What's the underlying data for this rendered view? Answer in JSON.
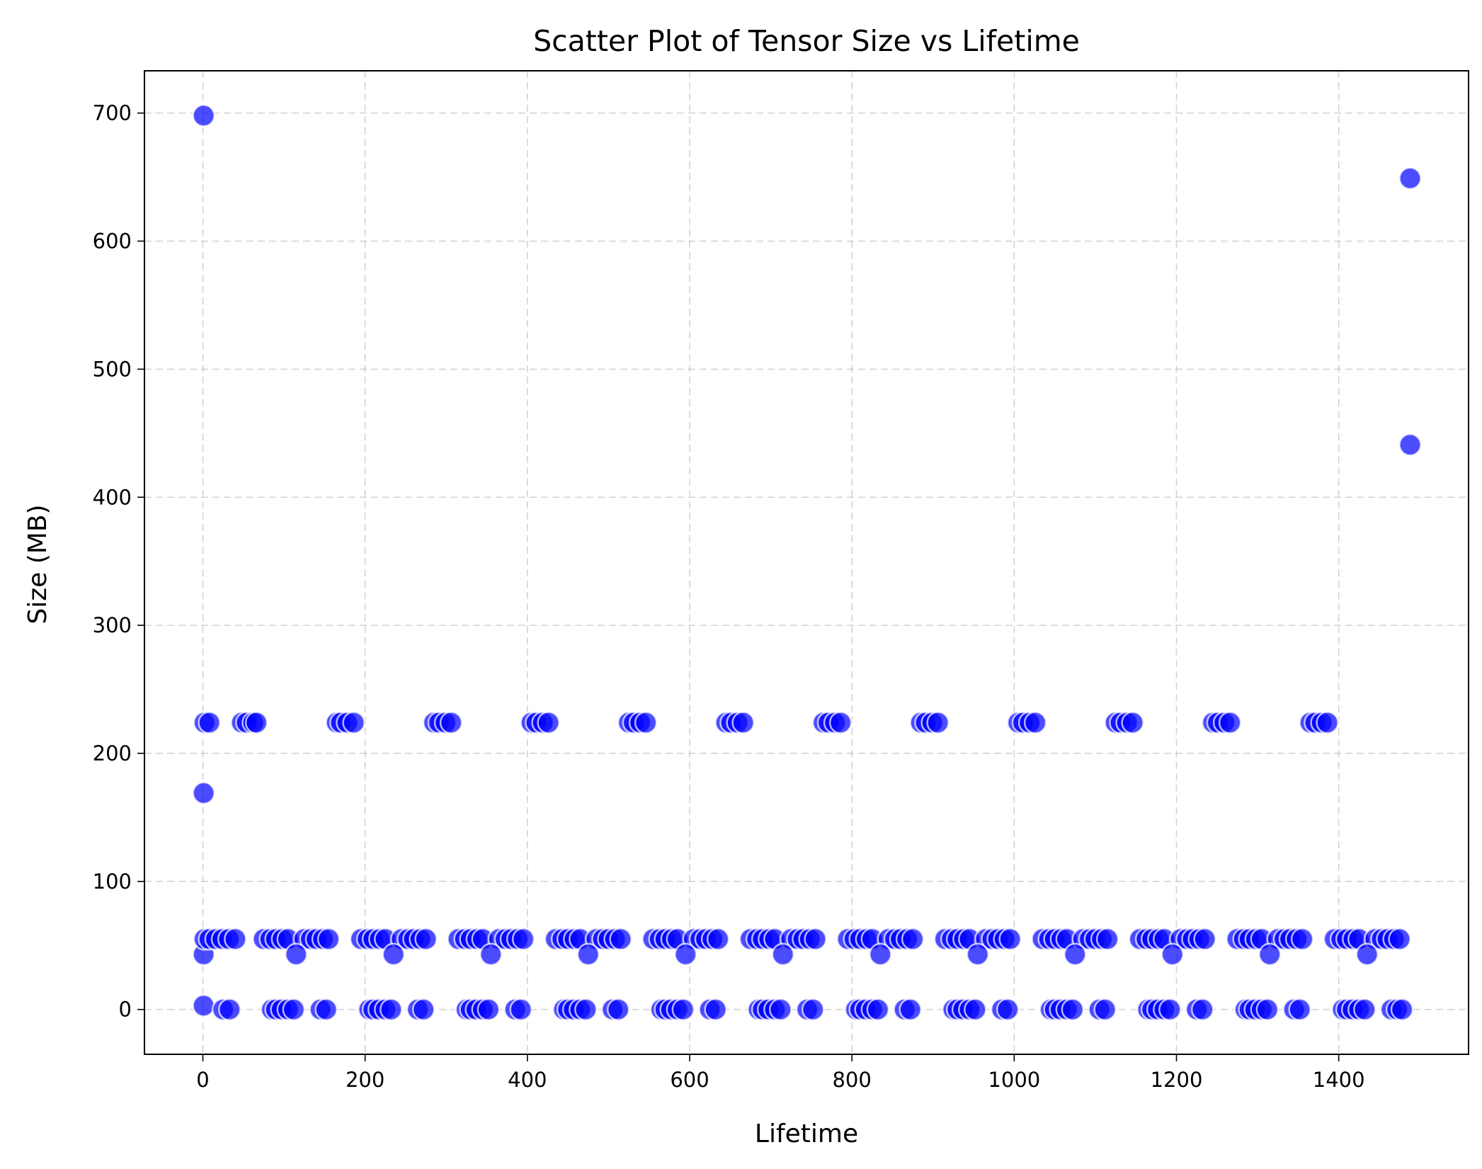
{
  "chart_data": {
    "type": "scatter",
    "title": "Scatter Plot of Tensor Size vs Lifetime",
    "xlabel": "Lifetime",
    "ylabel": "Size (MB)",
    "xlim": [
      -72,
      1560
    ],
    "ylim": [
      -35,
      733
    ],
    "xticks": [
      0,
      200,
      400,
      600,
      800,
      1000,
      1200,
      1400
    ],
    "yticks": [
      0,
      100,
      200,
      300,
      400,
      500,
      600,
      700
    ],
    "grid": true,
    "marker_color": "#0000ff",
    "edge_color": "#ffffff",
    "series": [
      {
        "points": [
          [
            1,
            698
          ],
          [
            1488,
            649
          ],
          [
            1488,
            441
          ],
          [
            1,
            169
          ],
          [
            1,
            43
          ],
          [
            1,
            3
          ],
          [
            2,
            55
          ],
          [
            2,
            224
          ],
          [
            8,
            224
          ],
          [
            48,
            224
          ],
          [
            54,
            224
          ],
          [
            62,
            224
          ],
          [
            66,
            224
          ],
          [
            165,
            224
          ],
          [
            170,
            224
          ],
          [
            178,
            224
          ],
          [
            186,
            224
          ],
          [
            285,
            224
          ],
          [
            291,
            224
          ],
          [
            299,
            224
          ],
          [
            306,
            224
          ],
          [
            405,
            224
          ],
          [
            411,
            224
          ],
          [
            419,
            224
          ],
          [
            426,
            224
          ],
          [
            525,
            224
          ],
          [
            531,
            224
          ],
          [
            539,
            224
          ],
          [
            546,
            224
          ],
          [
            645,
            224
          ],
          [
            651,
            224
          ],
          [
            659,
            224
          ],
          [
            666,
            224
          ],
          [
            765,
            224
          ],
          [
            771,
            224
          ],
          [
            779,
            224
          ],
          [
            786,
            224
          ],
          [
            885,
            224
          ],
          [
            891,
            224
          ],
          [
            899,
            224
          ],
          [
            906,
            224
          ],
          [
            1005,
            224
          ],
          [
            1011,
            224
          ],
          [
            1019,
            224
          ],
          [
            1026,
            224
          ],
          [
            1125,
            224
          ],
          [
            1131,
            224
          ],
          [
            1139,
            224
          ],
          [
            1146,
            224
          ],
          [
            1245,
            224
          ],
          [
            1251,
            224
          ],
          [
            1259,
            224
          ],
          [
            1266,
            224
          ],
          [
            1365,
            224
          ],
          [
            1371,
            224
          ],
          [
            1379,
            224
          ],
          [
            1386,
            224
          ],
          [
            8,
            55
          ],
          [
            16,
            55
          ],
          [
            24,
            55
          ],
          [
            32,
            55
          ],
          [
            40,
            55
          ],
          [
            75,
            55
          ],
          [
            83,
            55
          ],
          [
            90,
            55
          ],
          [
            98,
            55
          ],
          [
            105,
            55
          ],
          [
            125,
            55
          ],
          [
            133,
            55
          ],
          [
            140,
            55
          ],
          [
            148,
            55
          ],
          [
            155,
            55
          ],
          [
            195,
            55
          ],
          [
            203,
            55
          ],
          [
            210,
            55
          ],
          [
            218,
            55
          ],
          [
            225,
            55
          ],
          [
            245,
            55
          ],
          [
            253,
            55
          ],
          [
            260,
            55
          ],
          [
            268,
            55
          ],
          [
            275,
            55
          ],
          [
            315,
            55
          ],
          [
            323,
            55
          ],
          [
            330,
            55
          ],
          [
            338,
            55
          ],
          [
            345,
            55
          ],
          [
            365,
            55
          ],
          [
            373,
            55
          ],
          [
            380,
            55
          ],
          [
            388,
            55
          ],
          [
            395,
            55
          ],
          [
            435,
            55
          ],
          [
            443,
            55
          ],
          [
            450,
            55
          ],
          [
            458,
            55
          ],
          [
            465,
            55
          ],
          [
            485,
            55
          ],
          [
            493,
            55
          ],
          [
            500,
            55
          ],
          [
            508,
            55
          ],
          [
            515,
            55
          ],
          [
            555,
            55
          ],
          [
            563,
            55
          ],
          [
            570,
            55
          ],
          [
            578,
            55
          ],
          [
            585,
            55
          ],
          [
            605,
            55
          ],
          [
            613,
            55
          ],
          [
            620,
            55
          ],
          [
            628,
            55
          ],
          [
            635,
            55
          ],
          [
            675,
            55
          ],
          [
            683,
            55
          ],
          [
            690,
            55
          ],
          [
            698,
            55
          ],
          [
            705,
            55
          ],
          [
            725,
            55
          ],
          [
            733,
            55
          ],
          [
            740,
            55
          ],
          [
            748,
            55
          ],
          [
            755,
            55
          ],
          [
            795,
            55
          ],
          [
            803,
            55
          ],
          [
            810,
            55
          ],
          [
            818,
            55
          ],
          [
            825,
            55
          ],
          [
            845,
            55
          ],
          [
            853,
            55
          ],
          [
            860,
            55
          ],
          [
            868,
            55
          ],
          [
            875,
            55
          ],
          [
            915,
            55
          ],
          [
            923,
            55
          ],
          [
            930,
            55
          ],
          [
            938,
            55
          ],
          [
            945,
            55
          ],
          [
            965,
            55
          ],
          [
            973,
            55
          ],
          [
            980,
            55
          ],
          [
            988,
            55
          ],
          [
            995,
            55
          ],
          [
            1035,
            55
          ],
          [
            1043,
            55
          ],
          [
            1050,
            55
          ],
          [
            1058,
            55
          ],
          [
            1065,
            55
          ],
          [
            1085,
            55
          ],
          [
            1093,
            55
          ],
          [
            1100,
            55
          ],
          [
            1108,
            55
          ],
          [
            1115,
            55
          ],
          [
            1155,
            55
          ],
          [
            1163,
            55
          ],
          [
            1170,
            55
          ],
          [
            1178,
            55
          ],
          [
            1185,
            55
          ],
          [
            1205,
            55
          ],
          [
            1213,
            55
          ],
          [
            1220,
            55
          ],
          [
            1228,
            55
          ],
          [
            1235,
            55
          ],
          [
            1275,
            55
          ],
          [
            1283,
            55
          ],
          [
            1290,
            55
          ],
          [
            1298,
            55
          ],
          [
            1305,
            55
          ],
          [
            1325,
            55
          ],
          [
            1333,
            55
          ],
          [
            1340,
            55
          ],
          [
            1348,
            55
          ],
          [
            1355,
            55
          ],
          [
            1395,
            55
          ],
          [
            1403,
            55
          ],
          [
            1410,
            55
          ],
          [
            1418,
            55
          ],
          [
            1425,
            55
          ],
          [
            1445,
            55
          ],
          [
            1453,
            55
          ],
          [
            1460,
            55
          ],
          [
            1468,
            55
          ],
          [
            1475,
            55
          ],
          [
            115,
            43
          ],
          [
            235,
            43
          ],
          [
            355,
            43
          ],
          [
            475,
            43
          ],
          [
            595,
            43
          ],
          [
            715,
            43
          ],
          [
            835,
            43
          ],
          [
            955,
            43
          ],
          [
            1075,
            43
          ],
          [
            1195,
            43
          ],
          [
            1315,
            43
          ],
          [
            1435,
            43
          ],
          [
            25,
            0
          ],
          [
            33,
            0
          ],
          [
            85,
            0
          ],
          [
            90,
            0
          ],
          [
            97,
            0
          ],
          [
            105,
            0
          ],
          [
            112,
            0
          ],
          [
            145,
            0
          ],
          [
            152,
            0
          ],
          [
            205,
            0
          ],
          [
            210,
            0
          ],
          [
            217,
            0
          ],
          [
            225,
            0
          ],
          [
            232,
            0
          ],
          [
            265,
            0
          ],
          [
            272,
            0
          ],
          [
            325,
            0
          ],
          [
            330,
            0
          ],
          [
            337,
            0
          ],
          [
            345,
            0
          ],
          [
            352,
            0
          ],
          [
            385,
            0
          ],
          [
            392,
            0
          ],
          [
            445,
            0
          ],
          [
            450,
            0
          ],
          [
            457,
            0
          ],
          [
            465,
            0
          ],
          [
            472,
            0
          ],
          [
            505,
            0
          ],
          [
            512,
            0
          ],
          [
            565,
            0
          ],
          [
            570,
            0
          ],
          [
            577,
            0
          ],
          [
            585,
            0
          ],
          [
            592,
            0
          ],
          [
            625,
            0
          ],
          [
            632,
            0
          ],
          [
            685,
            0
          ],
          [
            690,
            0
          ],
          [
            697,
            0
          ],
          [
            705,
            0
          ],
          [
            712,
            0
          ],
          [
            745,
            0
          ],
          [
            752,
            0
          ],
          [
            805,
            0
          ],
          [
            810,
            0
          ],
          [
            817,
            0
          ],
          [
            825,
            0
          ],
          [
            832,
            0
          ],
          [
            865,
            0
          ],
          [
            872,
            0
          ],
          [
            925,
            0
          ],
          [
            930,
            0
          ],
          [
            937,
            0
          ],
          [
            945,
            0
          ],
          [
            952,
            0
          ],
          [
            985,
            0
          ],
          [
            992,
            0
          ],
          [
            1045,
            0
          ],
          [
            1050,
            0
          ],
          [
            1057,
            0
          ],
          [
            1065,
            0
          ],
          [
            1072,
            0
          ],
          [
            1105,
            0
          ],
          [
            1112,
            0
          ],
          [
            1165,
            0
          ],
          [
            1170,
            0
          ],
          [
            1177,
            0
          ],
          [
            1185,
            0
          ],
          [
            1192,
            0
          ],
          [
            1225,
            0
          ],
          [
            1232,
            0
          ],
          [
            1285,
            0
          ],
          [
            1290,
            0
          ],
          [
            1297,
            0
          ],
          [
            1305,
            0
          ],
          [
            1312,
            0
          ],
          [
            1345,
            0
          ],
          [
            1352,
            0
          ],
          [
            1405,
            0
          ],
          [
            1410,
            0
          ],
          [
            1417,
            0
          ],
          [
            1425,
            0
          ],
          [
            1432,
            0
          ],
          [
            1465,
            0
          ],
          [
            1472,
            0
          ],
          [
            1478,
            0
          ]
        ]
      }
    ]
  }
}
